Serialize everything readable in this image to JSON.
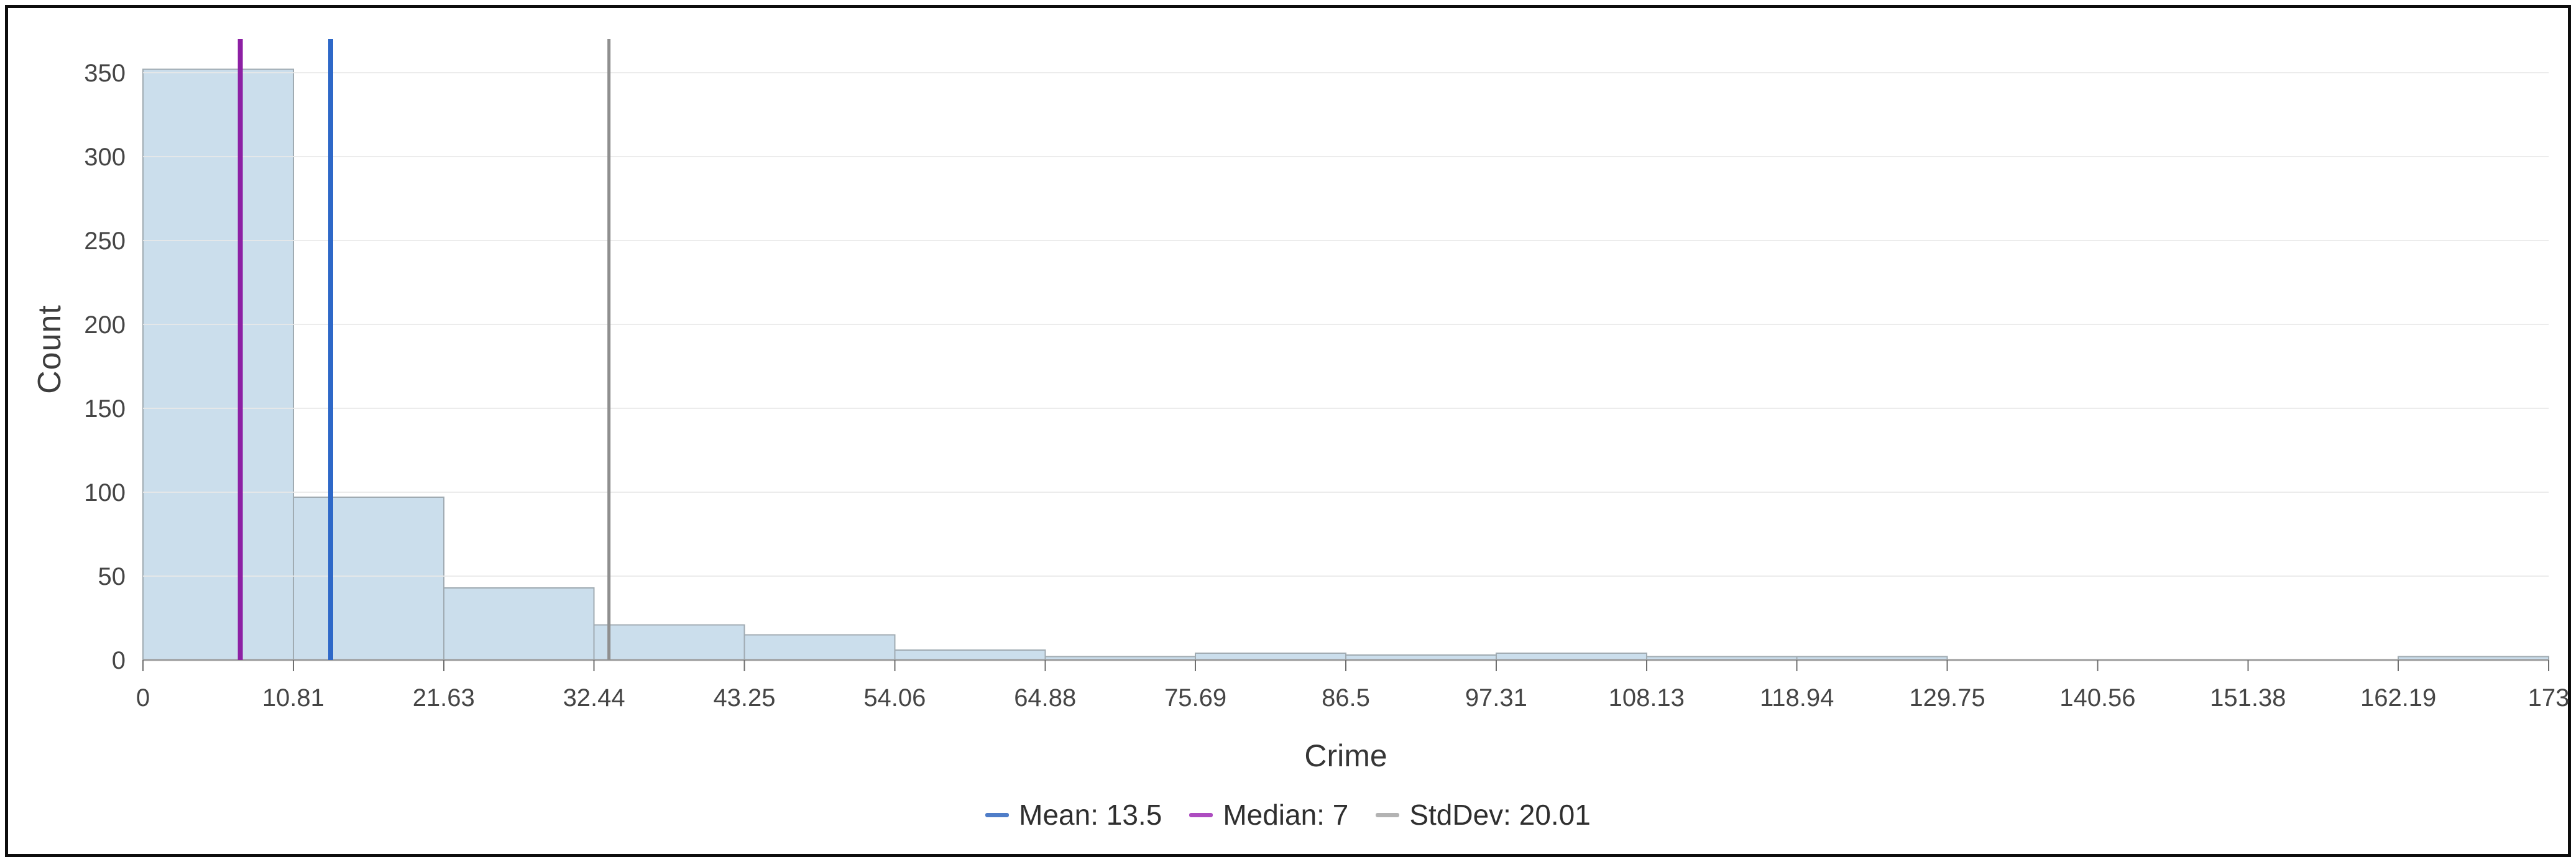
{
  "chart_data": {
    "type": "bar",
    "subtype": "histogram",
    "title": "",
    "xlabel": "Crime",
    "ylabel": "Count",
    "grid": true,
    "legend_position": "bottom",
    "xlim": [
      0,
      173
    ],
    "ylim": [
      0,
      370
    ],
    "bin_edges": [
      0,
      10.8125,
      21.625,
      32.4375,
      43.25,
      54.0625,
      64.875,
      75.6875,
      86.5,
      97.3125,
      108.125,
      118.9375,
      129.75,
      140.5625,
      151.375,
      162.1875,
      173
    ],
    "counts": [
      352,
      97,
      43,
      21,
      15,
      6,
      2,
      4,
      3,
      4,
      2,
      2,
      0,
      0,
      0,
      2
    ],
    "x_tick_values": [
      0,
      10.8125,
      21.625,
      32.4375,
      43.25,
      54.0625,
      64.875,
      75.6875,
      86.5,
      97.3125,
      108.125,
      118.9375,
      129.75,
      140.5625,
      151.375,
      162.1875,
      173
    ],
    "x_tick_labels": [
      "0",
      "10.81",
      "21.63",
      "32.44",
      "43.25",
      "54.06",
      "64.88",
      "75.69",
      "86.5",
      "97.31",
      "108.13",
      "118.94",
      "129.75",
      "140.56",
      "151.38",
      "162.19",
      "173"
    ],
    "y_ticks": [
      0,
      50,
      100,
      150,
      200,
      250,
      300,
      350
    ],
    "y_tick_labels": [
      "0",
      "50",
      "100",
      "150",
      "200",
      "250",
      "300",
      "350"
    ],
    "stats": {
      "mean": 13.5,
      "median": 7,
      "stddev": 20.01
    },
    "reference_lines": [
      {
        "id": "mean",
        "label": "Mean: 13.5",
        "x": 13.5,
        "color": "#2e68c8",
        "legend_color": "#4f7dc8",
        "width": 8
      },
      {
        "id": "median",
        "label": "Median: 7",
        "x": 7,
        "color": "#8d20a4",
        "legend_color": "#ad4cc0",
        "width": 8
      },
      {
        "id": "stddev",
        "label": "StdDev: 20.01",
        "x": 33.51,
        "color": "#8f8f8f",
        "legend_color": "#b3b3b3",
        "width": 5
      }
    ],
    "colors": {
      "bar_fill": "#cbdeec",
      "bar_stroke": "#a0abb2",
      "gridline": "#e9e9e9",
      "axis_line": "#9b9b9b",
      "tick_mark": "#6f6f6f",
      "tick_text": "#454545",
      "background": "#ffffff",
      "border": "#0d0d0d"
    }
  }
}
